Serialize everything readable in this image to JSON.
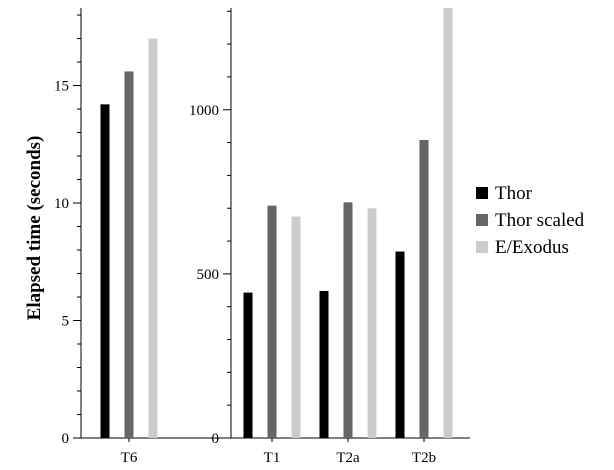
{
  "ylabel": "Elapsed time (seconds)",
  "legend": [
    {
      "label": "Thor",
      "color": "#000000"
    },
    {
      "label": "Thor scaled",
      "color": "#666666"
    },
    {
      "label": "E/Exodus",
      "color": "#cccccc"
    }
  ],
  "chart_data": [
    {
      "type": "bar",
      "categories": [
        "T6"
      ],
      "ylim": [
        0,
        18.3
      ],
      "yticks": [
        0,
        5,
        10,
        15
      ],
      "ytick_labels": [
        "0",
        "5",
        "10",
        "15"
      ],
      "series": [
        {
          "name": "Thor",
          "values": [
            14.2
          ]
        },
        {
          "name": "Thor scaled",
          "values": [
            15.6
          ]
        },
        {
          "name": "E/Exodus",
          "values": [
            17.0
          ]
        }
      ]
    },
    {
      "type": "bar",
      "categories": [
        "T1",
        "T2a",
        "T2b"
      ],
      "ylim": [
        0,
        1310
      ],
      "yticks": [
        0,
        500,
        1000
      ],
      "ytick_labels": [
        "0",
        "500",
        "1000"
      ],
      "series": [
        {
          "name": "Thor",
          "values": [
            443,
            448,
            568
          ]
        },
        {
          "name": "Thor scaled",
          "values": [
            708,
            718,
            908
          ]
        },
        {
          "name": "E/Exodus",
          "values": [
            675,
            700,
            1310
          ]
        }
      ]
    }
  ]
}
